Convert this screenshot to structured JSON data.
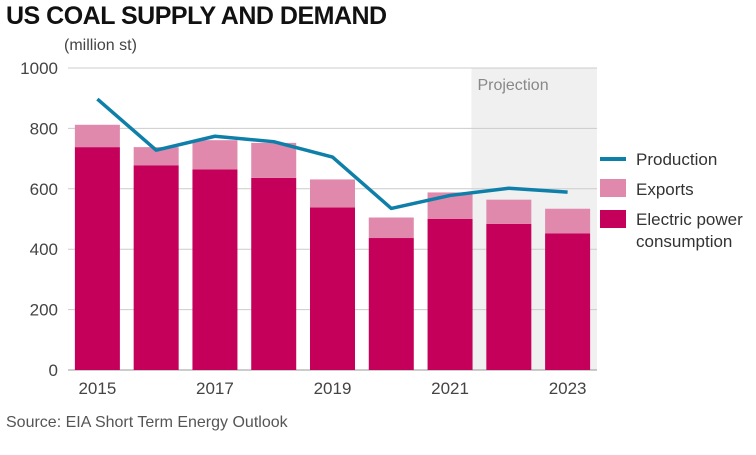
{
  "title": "US COAL SUPPLY AND DEMAND",
  "unit_label": "(million st)",
  "source": "Source: EIA Short Term Energy Outlook",
  "projection_label": "Projection",
  "colors": {
    "production": "#0e7fa8",
    "exports": "#e089ac",
    "electric": "#c4005a",
    "projection_bg": "#f0f0f0",
    "grid": "#cccccc"
  },
  "chart_data": {
    "type": "bar",
    "stacked": true,
    "categories": [
      "2015",
      "2016",
      "2017",
      "2018",
      "2019",
      "2020",
      "2021",
      "2022",
      "2023"
    ],
    "x_tick_labels": [
      "2015",
      "2017",
      "2019",
      "2021",
      "2023"
    ],
    "y_ticks": [
      0,
      200,
      400,
      600,
      800,
      1000
    ],
    "ylim": [
      0,
      1000
    ],
    "projection_start": "2022",
    "series": [
      {
        "name": "Electric power consumption",
        "kind": "bar",
        "values": [
          738,
          678,
          664,
          636,
          538,
          437,
          500,
          484,
          452
        ]
      },
      {
        "name": "Exports",
        "kind": "bar",
        "values": [
          74,
          60,
          97,
          116,
          93,
          68,
          88,
          80,
          82
        ]
      },
      {
        "name": "Production",
        "kind": "line",
        "values": [
          897,
          728,
          774,
          756,
          705,
          535,
          578,
          602,
          589
        ]
      }
    ],
    "legend": {
      "position": "right",
      "entries": [
        "Production",
        "Exports",
        "Electric power consumption"
      ]
    },
    "grid": true
  }
}
